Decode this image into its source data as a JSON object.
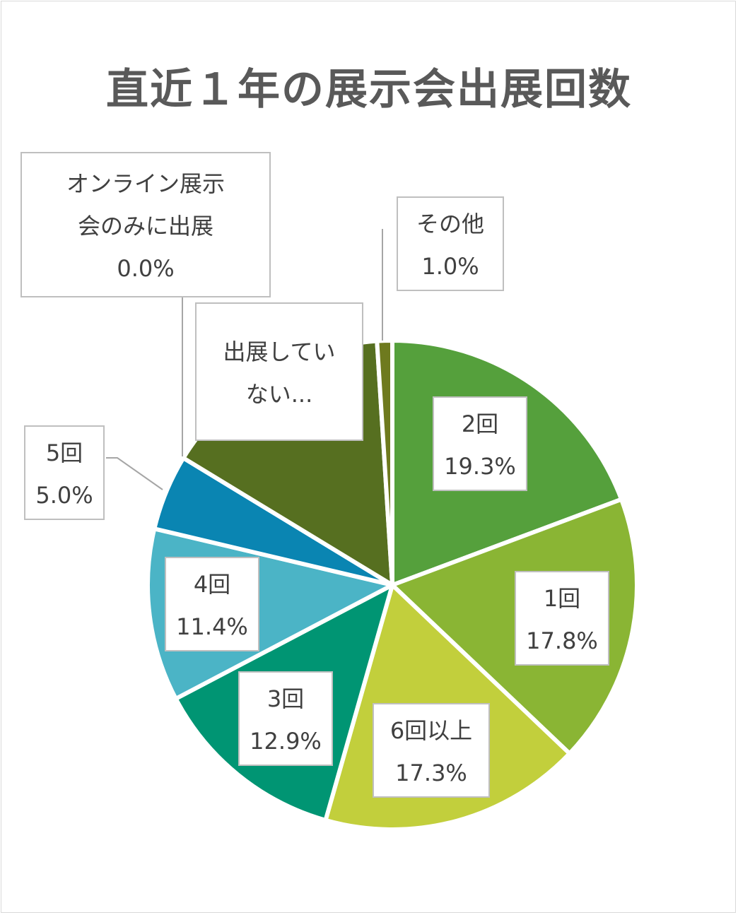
{
  "chart_data": {
    "type": "pie",
    "title": "直近１年の展示会出展回数",
    "categories": [
      "2回",
      "1回",
      "6回以上",
      "3回",
      "4回",
      "5回",
      "オンライン展示会のみに出展",
      "出展していない…",
      "その他"
    ],
    "values": [
      19.3,
      17.8,
      17.3,
      12.9,
      11.4,
      5.0,
      0.0,
      15.3,
      1.0
    ],
    "colors": [
      "#55a03c",
      "#8ab534",
      "#c2cf3c",
      "#009573",
      "#4bb4c6",
      "#0a85b2",
      "#4a7a2a",
      "#566f20",
      "#6e7a1e"
    ],
    "labels": [
      {
        "lines": [
          "2回",
          "19.3%"
        ]
      },
      {
        "lines": [
          "1回",
          "17.8%"
        ]
      },
      {
        "lines": [
          "6回以上",
          "17.3%"
        ]
      },
      {
        "lines": [
          "3回",
          "12.9%"
        ]
      },
      {
        "lines": [
          "4回",
          "11.4%"
        ]
      },
      {
        "lines": [
          "5回",
          "5.0%"
        ]
      },
      {
        "lines": [
          "オンライン展示",
          "会のみに出展",
          "0.0%"
        ]
      },
      {
        "lines": [
          "出展してい",
          "ない..."
        ]
      },
      {
        "lines": [
          "その他",
          "1.0%"
        ]
      }
    ]
  }
}
